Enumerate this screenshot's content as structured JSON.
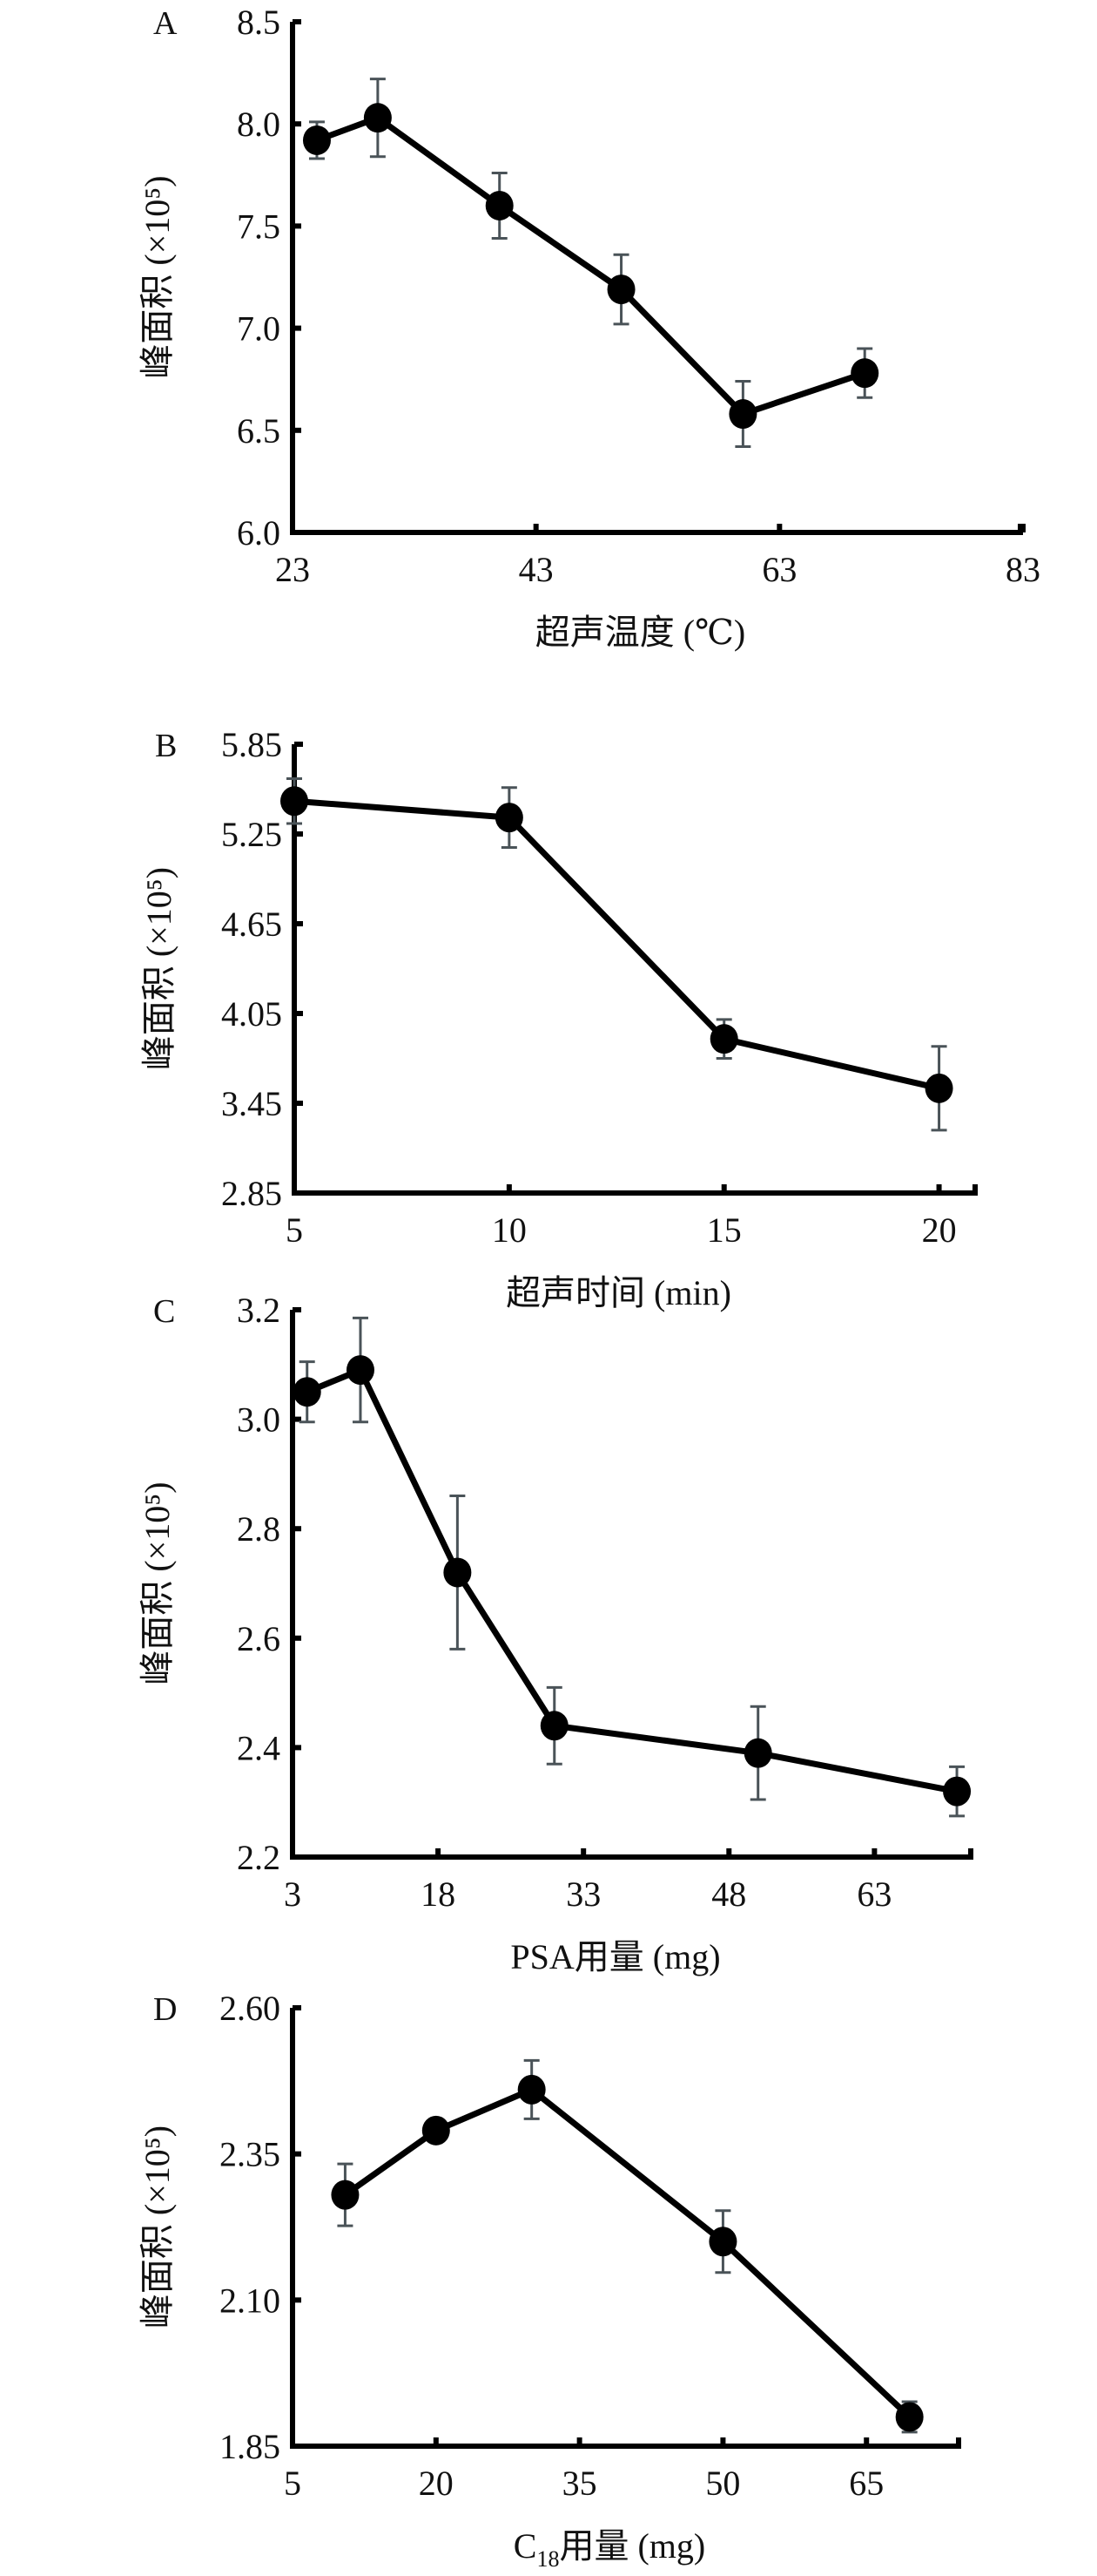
{
  "chart_data": [
    {
      "type": "line",
      "panel_label": "A",
      "xlabel": "超声温度 (℃)",
      "ylabel": "峰面积 (×10⁵)",
      "xlim": [
        23,
        83
      ],
      "ylim": [
        6.0,
        8.5
      ],
      "xticks": [
        "23",
        "43",
        "63",
        "83"
      ],
      "yticks": [
        "6.0",
        "6.5",
        "7.0",
        "7.5",
        "8.0",
        "8.5"
      ],
      "x": [
        25,
        30,
        40,
        50,
        60,
        70
      ],
      "y": [
        7.92,
        8.03,
        7.6,
        7.19,
        6.58,
        6.78
      ],
      "error": [
        0.09,
        0.19,
        0.16,
        0.17,
        0.16,
        0.12
      ]
    },
    {
      "type": "line",
      "panel_label": "B",
      "xlabel": "超声时间 (min)",
      "ylabel": "峰面积 (×10⁵)",
      "xlim": [
        5,
        20.9
      ],
      "ylim": [
        2.85,
        5.85
      ],
      "xticks": [
        "5",
        "10",
        "15",
        "20"
      ],
      "yticks": [
        "2.85",
        "3.45",
        "4.05",
        "4.65",
        "5.25",
        "5.85"
      ],
      "x": [
        5,
        10,
        15,
        20
      ],
      "y": [
        5.47,
        5.36,
        3.88,
        3.55
      ],
      "error": [
        0.15,
        0.2,
        0.13,
        0.28
      ]
    },
    {
      "type": "line",
      "panel_label": "C",
      "xlabel": "PSA用量 (mg)",
      "ylabel": "峰面积 (×10⁵)",
      "xlim": [
        3,
        73.2
      ],
      "ylim": [
        2.2,
        3.2
      ],
      "xticks": [
        "3",
        "18",
        "33",
        "48",
        "63"
      ],
      "yticks": [
        "2.2",
        "2.4",
        "2.6",
        "2.8",
        "3.0",
        "3.2"
      ],
      "x": [
        4.5,
        10,
        20,
        30,
        51,
        71.5
      ],
      "y": [
        3.05,
        3.09,
        2.72,
        2.44,
        2.39,
        2.32
      ],
      "error": [
        0.055,
        0.095,
        0.14,
        0.07,
        0.085,
        0.045
      ]
    },
    {
      "type": "line",
      "panel_label": "D",
      "xlabel_main": "C",
      "xlabel_sub": "18",
      "xlabel_rest": "用量 (mg)",
      "ylabel": "峰面积 (×10⁵)",
      "xlim": [
        5,
        74.9
      ],
      "ylim": [
        1.85,
        2.6
      ],
      "xticks": [
        "5",
        "20",
        "35",
        "50",
        "65"
      ],
      "yticks": [
        "1.85",
        "2.10",
        "2.35",
        "2.60"
      ],
      "x": [
        10.5,
        20,
        30,
        50,
        69.5
      ],
      "y": [
        2.28,
        2.39,
        2.46,
        2.2,
        1.9
      ],
      "error": [
        0.053,
        0,
        0.05,
        0.053,
        0.026
      ]
    }
  ]
}
